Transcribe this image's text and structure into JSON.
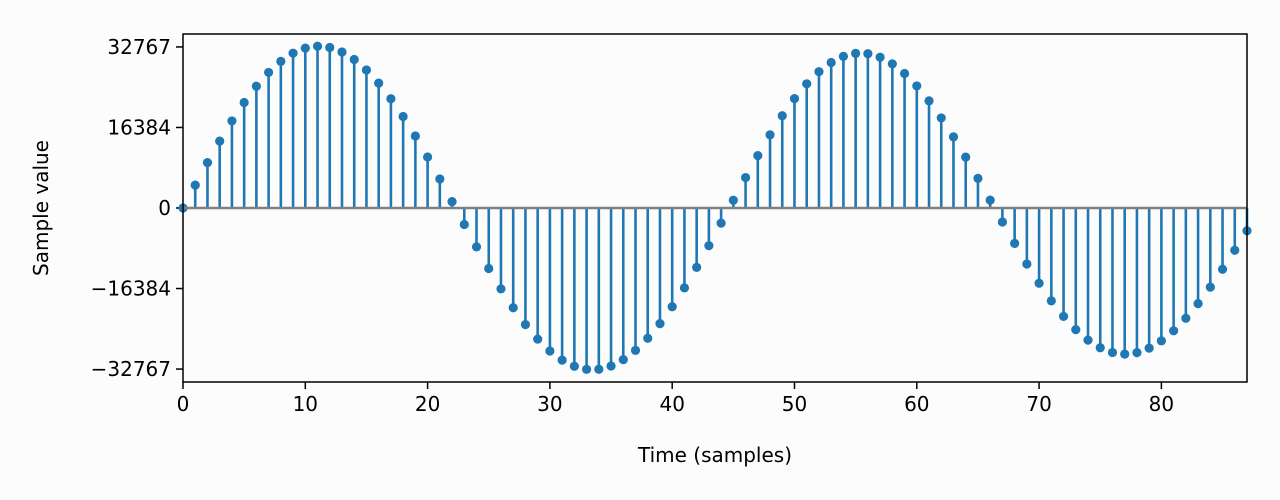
{
  "chart_data": {
    "type": "stem",
    "title": "",
    "xlabel": "Time (samples)",
    "ylabel": "Sample value",
    "xlim": [
      0,
      87
    ],
    "ylim": [
      -35400,
      35400
    ],
    "xticks": [
      0,
      10,
      20,
      30,
      40,
      50,
      60,
      70,
      80
    ],
    "xtick_labels": [
      "0",
      "10",
      "20",
      "30",
      "40",
      "50",
      "60",
      "70",
      "80"
    ],
    "yticks": [
      32767,
      16384,
      0,
      -16384,
      -32767
    ],
    "ytick_labels": [
      "32767",
      "16384",
      "0",
      "−16384",
      "−32767"
    ],
    "grid": false,
    "series_color": "#1f77b4",
    "baseline_color": "#808080",
    "series": [
      {
        "x": [
          0,
          1,
          2,
          3,
          4,
          5,
          6,
          7,
          8,
          9,
          10,
          11,
          12,
          13,
          14,
          15,
          16,
          17,
          18,
          19,
          20,
          21,
          22,
          23,
          24,
          25,
          26,
          27,
          28,
          29,
          30,
          31,
          32,
          33,
          34,
          35,
          36,
          37,
          38,
          39,
          40,
          41,
          42,
          43,
          44,
          45,
          46,
          47,
          48,
          49,
          50,
          51,
          52,
          53,
          54,
          55,
          56,
          57,
          58,
          59,
          60,
          61,
          62,
          63,
          64,
          65,
          66,
          67,
          68,
          69,
          70,
          71,
          72,
          73,
          74,
          75,
          76,
          77,
          78,
          79,
          80,
          81,
          82,
          83,
          84,
          85,
          86,
          87
        ],
        "values": [
          0,
          4663,
          9231,
          13611,
          17715,
          21459,
          24770,
          27581,
          29838,
          31499,
          32532,
          32919,
          32654,
          31745,
          30212,
          28086,
          25410,
          22236,
          18625,
          14648,
          10379,
          5900,
          1297,
          -3345,
          -7910,
          -12312,
          -16466,
          -20290,
          -23712,
          -26665,
          -29093,
          -30951,
          -32202,
          -32823,
          -32803,
          -32142,
          -30853,
          -28961,
          -26502,
          -23524,
          -20084,
          -16246,
          -12081,
          -7665,
          -3083,
          1581,
          6194,
          10659,
          14883,
          18778,
          22263,
          25269,
          27734,
          29609,
          30858,
          31456,
          31395,
          30679,
          29325,
          27364,
          24838,
          21802,
          18324,
          14480,
          10350,
          6025,
          1596,
          -2842,
          -7201,
          -11389,
          -15316,
          -18898,
          -22060,
          -24737,
          -26876,
          -28435,
          -29387,
          -29716,
          -29422,
          -28517,
          -27025,
          -24983,
          -22440,
          -19457,
          -16103,
          -12457,
          -8603,
          -4629
        ]
      }
    ]
  }
}
